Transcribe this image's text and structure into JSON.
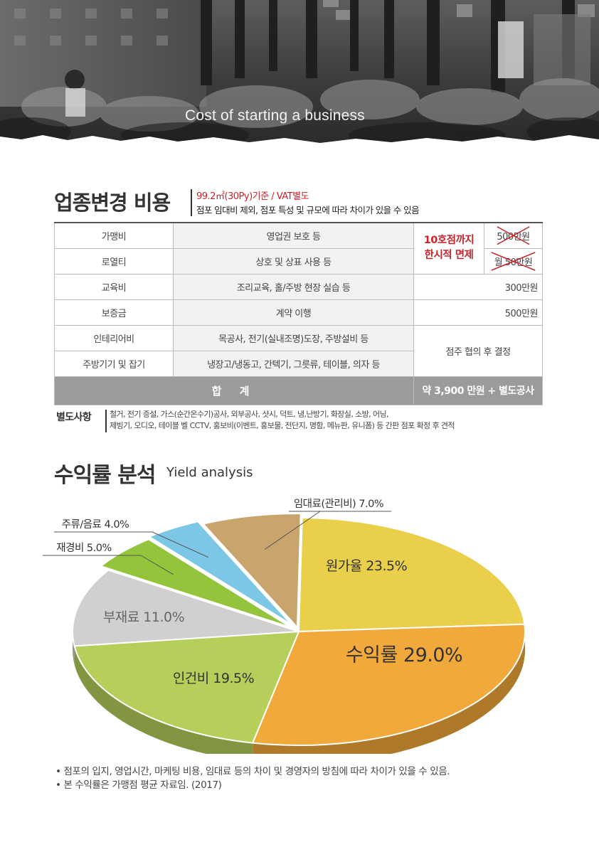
{
  "hero": {
    "caption": "Cost of starting a business"
  },
  "section1": {
    "title": "업종변경 비용",
    "basis": "99.2㎡(30Py)기준 / VAT별도",
    "note": "점포 임대비 제외, 점포 특성 및 규모에 따라 차이가 있을 수 있음"
  },
  "cost_table": {
    "rows": [
      {
        "item": "가맹비",
        "desc": "영업권 보호 등",
        "cost": "500만원"
      },
      {
        "item": "로열티",
        "desc": "상호 및 상표 사용 등",
        "cost": "월 50만원"
      },
      {
        "item": "교육비",
        "desc": "조리교육, 홀/주방 현장 실습 등",
        "cost": "300만원"
      },
      {
        "item": "보증금",
        "desc": "계약 이행",
        "cost": "500만원"
      },
      {
        "item": "인테리어비",
        "desc": "목공사, 전기(실내조명)도장, 주방설비 등"
      },
      {
        "item": "주방기기 및 잡기",
        "desc": "냉장고/냉동고, 간텍기, 그릇류, 테이블, 의자 등"
      }
    ],
    "waiver_note": [
      "10호점까지",
      "한시적 면제"
    ],
    "negotiated": "점주 협의 후 결정",
    "total_label": "합 계",
    "total_value": "약 3,900 만원 + 별도공사"
  },
  "extra": {
    "label": "별도사항",
    "line1": "철거, 전기 증설, 가스(순간온수기)공사, 외부공사, 샷시, 덕트, 냉,난방기, 화장실, 소방, 어닝,",
    "line2": "제빙기, 오디오, 테이블 벨 CCTV, 홍보비(이벤트, 홍보물, 전단지, 명함, 메뉴판, 유니폼) 등 간판 점포 확정 후 견적"
  },
  "section2": {
    "title": "수익률 분석",
    "subtitle": "Yield analysis"
  },
  "chart_data": {
    "type": "pie",
    "title": "",
    "unit": "%",
    "slices": [
      {
        "label": "원가율",
        "value": 23.5,
        "text": "원가율 23.5%",
        "color": "#ead04a"
      },
      {
        "label": "수익률",
        "value": 29.0,
        "text": "수익률 29.0%",
        "color": "#f2a93b"
      },
      {
        "label": "인건비",
        "value": 19.5,
        "text": "인건비 19.5%",
        "color": "#b5cf5a"
      },
      {
        "label": "부재료",
        "value": 11.0,
        "text": "부재료 11.0%",
        "color": "#d0d0d0"
      },
      {
        "label": "재경비",
        "value": 5.0,
        "text": "재경비 5.0%",
        "color": "#93c43b"
      },
      {
        "label": "주류/음료",
        "value": 4.0,
        "text": "주류/음료 4.0%",
        "color": "#7cc6e6"
      },
      {
        "label": "임대료(관리비)",
        "value": 7.0,
        "text": "임대료(관리비) 7.0%",
        "color": "#c9a46c"
      }
    ]
  },
  "footnotes": [
    "• 점포의 입지, 영업시간, 마케팅 비용, 임대료 등의 차이 및 경영자의 방침에 따라 차이가 있을 수 있음.",
    "• 본 수익률은 가맹점 평균 자료임. (2017)"
  ]
}
